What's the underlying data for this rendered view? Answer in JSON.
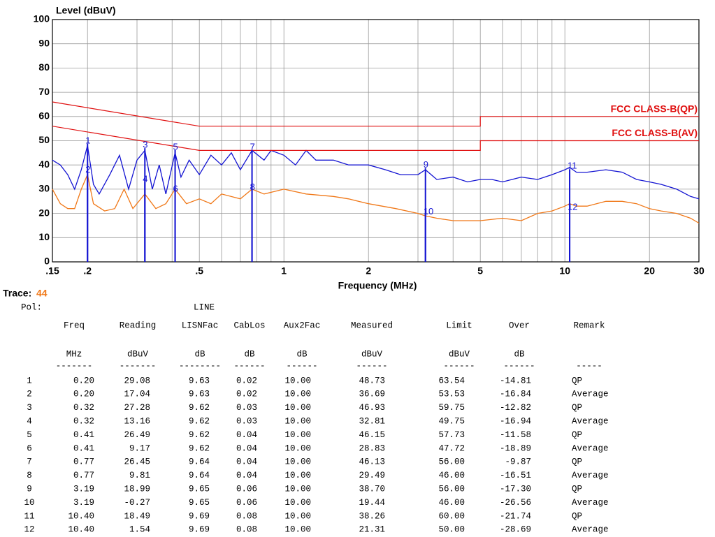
{
  "chart_data": {
    "type": "line",
    "y_label": "Level (dBuV)",
    "x_label": "Frequency (MHz)",
    "log_x": true,
    "grid": true,
    "xlim": [
      0.15,
      30
    ],
    "ylim": [
      0,
      100
    ],
    "yticks": [
      0,
      10,
      20,
      30,
      40,
      50,
      60,
      70,
      80,
      90,
      100
    ],
    "xticks": [
      {
        "value": 0.15,
        "label": ".15"
      },
      {
        "value": 0.2,
        "label": ".2"
      },
      {
        "value": 0.5,
        "label": ".5"
      },
      1,
      2,
      5,
      10,
      20,
      30
    ],
    "minor_xticks": [
      0.3,
      0.4,
      0.6,
      0.7,
      0.8,
      0.9,
      3,
      4,
      6,
      7,
      8,
      9
    ],
    "series": [
      {
        "color": "#1414d2",
        "x": [
          0.15,
          0.16,
          0.17,
          0.18,
          0.19,
          0.2,
          0.21,
          0.22,
          0.24,
          0.26,
          0.28,
          0.3,
          0.32,
          0.34,
          0.36,
          0.38,
          0.41,
          0.43,
          0.46,
          0.5,
          0.55,
          0.6,
          0.65,
          0.7,
          0.77,
          0.85,
          0.9,
          1,
          1.1,
          1.2,
          1.3,
          1.5,
          1.7,
          2,
          2.3,
          2.6,
          3,
          3.19,
          3.5,
          4,
          4.5,
          5,
          5.5,
          6,
          7,
          8,
          9,
          10,
          10.4,
          11,
          12,
          14,
          16,
          18,
          20,
          22,
          25,
          28,
          30
        ],
        "values": [
          42,
          40,
          36,
          30,
          38,
          48,
          32,
          28,
          36,
          44,
          30,
          42,
          46,
          30,
          40,
          28,
          45,
          35,
          42,
          36,
          44,
          40,
          45,
          38,
          46,
          42,
          46,
          44,
          40,
          46,
          42,
          42,
          40,
          40,
          38,
          36,
          36,
          38,
          34,
          35,
          33,
          34,
          34,
          33,
          35,
          34,
          36,
          38,
          39,
          37,
          37,
          38,
          37,
          34,
          33,
          32,
          30,
          27,
          26
        ]
      },
      {
        "color": "#f07818",
        "x": [
          0.15,
          0.16,
          0.17,
          0.18,
          0.19,
          0.2,
          0.21,
          0.23,
          0.25,
          0.27,
          0.29,
          0.32,
          0.35,
          0.38,
          0.41,
          0.45,
          0.5,
          0.55,
          0.6,
          0.7,
          0.77,
          0.85,
          1,
          1.2,
          1.5,
          1.7,
          2,
          2.5,
          3,
          3.19,
          3.5,
          4,
          5,
          6,
          7,
          8,
          9,
          10,
          10.4,
          11,
          12,
          14,
          16,
          18,
          20,
          22,
          25,
          28,
          30
        ],
        "values": [
          30,
          24,
          22,
          22,
          30,
          36,
          24,
          21,
          22,
          30,
          22,
          28,
          22,
          24,
          30,
          24,
          26,
          24,
          28,
          26,
          30,
          28,
          30,
          28,
          27,
          26,
          24,
          22,
          20,
          19,
          18,
          17,
          17,
          18,
          17,
          20,
          21,
          23,
          24,
          23,
          23,
          25,
          25,
          24,
          22,
          21,
          20,
          18,
          16
        ]
      }
    ],
    "limits": [
      {
        "name": "FCC CLASS-B(QP)",
        "color": "#e01010",
        "x": [
          0.15,
          0.5,
          5,
          5,
          30
        ],
        "values": [
          66,
          56,
          56,
          60,
          60
        ]
      },
      {
        "name": "FCC CLASS-B(AV)",
        "color": "#e01010",
        "x": [
          0.15,
          0.5,
          5,
          5,
          30
        ],
        "values": [
          56,
          46,
          46,
          50,
          50
        ]
      }
    ],
    "markers": {
      "labels": [
        "1",
        "2",
        "3",
        "4",
        "5",
        "6",
        "7",
        "8",
        "9",
        "10",
        "11",
        "12"
      ],
      "x": [
        0.2,
        0.2,
        0.32,
        0.32,
        0.41,
        0.41,
        0.77,
        0.77,
        3.19,
        3.19,
        10.4,
        10.4
      ],
      "values": [
        48.73,
        36.69,
        46.93,
        32.81,
        46.15,
        28.83,
        46.13,
        29.49,
        38.7,
        19.44,
        38.26,
        21.31
      ]
    }
  },
  "trace": {
    "label": "Trace:",
    "value": "44"
  },
  "pol": {
    "label": "Pol:",
    "value": "LINE"
  },
  "table": {
    "header": [
      "Freq",
      "Reading",
      "LISNFac",
      "CabLos",
      "Aux2Fac",
      "Measured",
      "Limit",
      "Over",
      "Remark"
    ],
    "units": [
      "MHz",
      "dBuV",
      "dB",
      "dB",
      "dB",
      "dBuV",
      "dBuV",
      "dB"
    ],
    "dashes": [
      "-------",
      "-------",
      "--------",
      "------",
      "------",
      "------",
      "------",
      "------",
      "-----"
    ],
    "rows": [
      [
        "1",
        "0.20",
        "29.08",
        "9.63",
        "0.02",
        "10.00",
        "48.73",
        "63.54",
        "-14.81",
        "QP"
      ],
      [
        "2",
        "0.20",
        "17.04",
        "9.63",
        "0.02",
        "10.00",
        "36.69",
        "53.53",
        "-16.84",
        "Average"
      ],
      [
        "3",
        "0.32",
        "27.28",
        "9.62",
        "0.03",
        "10.00",
        "46.93",
        "59.75",
        "-12.82",
        "QP"
      ],
      [
        "4",
        "0.32",
        "13.16",
        "9.62",
        "0.03",
        "10.00",
        "32.81",
        "49.75",
        "-16.94",
        "Average"
      ],
      [
        "5",
        "0.41",
        "26.49",
        "9.62",
        "0.04",
        "10.00",
        "46.15",
        "57.73",
        "-11.58",
        "QP"
      ],
      [
        "6",
        "0.41",
        "9.17",
        "9.62",
        "0.04",
        "10.00",
        "28.83",
        "47.72",
        "-18.89",
        "Average"
      ],
      [
        "7",
        "0.77",
        "26.45",
        "9.64",
        "0.04",
        "10.00",
        "46.13",
        "56.00",
        "-9.87",
        "QP"
      ],
      [
        "8",
        "0.77",
        "9.81",
        "9.64",
        "0.04",
        "10.00",
        "29.49",
        "46.00",
        "-16.51",
        "Average"
      ],
      [
        "9",
        "3.19",
        "18.99",
        "9.65",
        "0.06",
        "10.00",
        "38.70",
        "56.00",
        "-17.30",
        "QP"
      ],
      [
        "10",
        "3.19",
        "-0.27",
        "9.65",
        "0.06",
        "10.00",
        "19.44",
        "46.00",
        "-26.56",
        "Average"
      ],
      [
        "11",
        "10.40",
        "18.49",
        "9.69",
        "0.08",
        "10.00",
        "38.26",
        "60.00",
        "-21.74",
        "QP"
      ],
      [
        "12",
        "10.40",
        "1.54",
        "9.69",
        "0.08",
        "10.00",
        "21.31",
        "50.00",
        "-28.69",
        "Average"
      ]
    ]
  }
}
